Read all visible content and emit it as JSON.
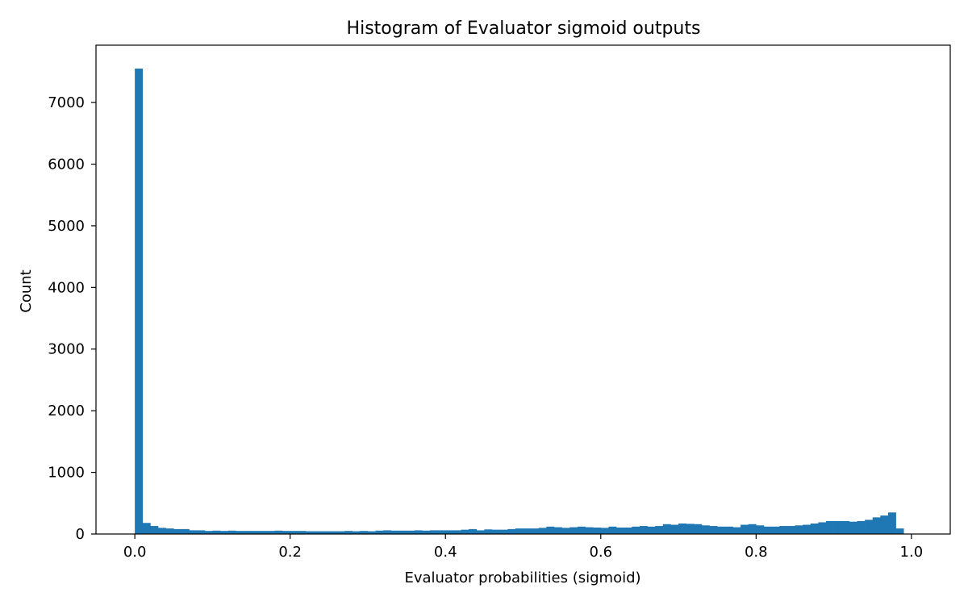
{
  "chart_data": {
    "type": "bar",
    "title": "Histogram of Evaluator sigmoid outputs",
    "xlabel": "Evaluator probabilities (sigmoid)",
    "ylabel": "Count",
    "xlim": [
      -0.05,
      1.05
    ],
    "ylim": [
      0,
      7930
    ],
    "x_ticks": [
      0.0,
      0.2,
      0.4,
      0.6,
      0.8,
      1.0
    ],
    "x_tick_labels": [
      "0.0",
      "0.2",
      "0.4",
      "0.6",
      "0.8",
      "1.0"
    ],
    "y_ticks": [
      0,
      1000,
      2000,
      3000,
      4000,
      5000,
      6000,
      7000
    ],
    "y_tick_labels": [
      "0",
      "1000",
      "2000",
      "3000",
      "4000",
      "5000",
      "6000",
      "7000"
    ],
    "bin_start": 0.0,
    "bin_width": 0.01,
    "bar_color": "#1f77b4",
    "grid": false,
    "values": [
      7550,
      180,
      130,
      100,
      90,
      80,
      80,
      60,
      60,
      50,
      55,
      50,
      55,
      50,
      50,
      50,
      50,
      50,
      55,
      50,
      50,
      50,
      45,
      45,
      45,
      45,
      45,
      50,
      45,
      50,
      45,
      55,
      60,
      55,
      55,
      55,
      60,
      55,
      60,
      60,
      60,
      60,
      70,
      80,
      60,
      75,
      70,
      70,
      80,
      90,
      90,
      90,
      100,
      120,
      110,
      100,
      110,
      120,
      110,
      105,
      100,
      120,
      105,
      105,
      120,
      130,
      120,
      130,
      160,
      150,
      170,
      165,
      160,
      140,
      130,
      120,
      120,
      110,
      150,
      160,
      140,
      120,
      120,
      130,
      130,
      140,
      150,
      170,
      190,
      210,
      210,
      210,
      200,
      210,
      230,
      270,
      300,
      350,
      90
    ]
  }
}
